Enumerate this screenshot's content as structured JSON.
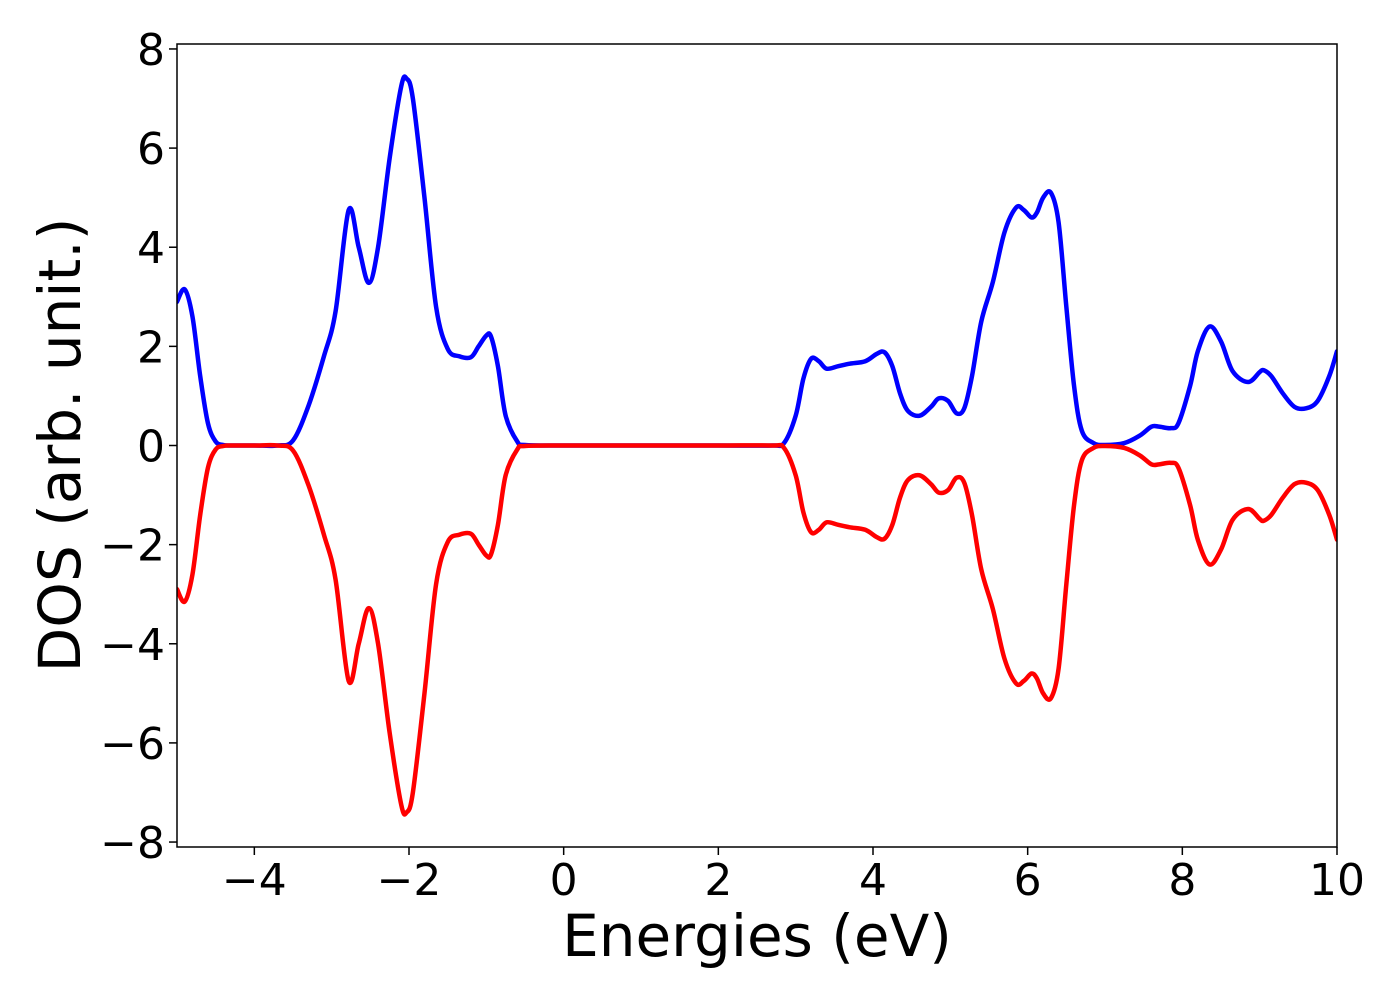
{
  "chart_data": {
    "type": "line",
    "xlabel": "Energies (eV)",
    "ylabel": "DOS (arb. unit.)",
    "xlim": [
      -5,
      10
    ],
    "ylim": [
      -8.1,
      8.1
    ],
    "xticks": [
      -4,
      -2,
      0,
      2,
      4,
      6,
      8,
      10
    ],
    "yticks": [
      -8,
      -6,
      -4,
      -2,
      0,
      2,
      4,
      6,
      8
    ],
    "xtick_labels": [
      "−4",
      "−2",
      "0",
      "2",
      "4",
      "6",
      "8",
      "10"
    ],
    "ytick_labels": [
      "−8",
      "−6",
      "−4",
      "−2",
      "0",
      "2",
      "4",
      "6",
      "8"
    ],
    "grid": false,
    "legend": "none",
    "series": [
      {
        "color": "#0000ff",
        "x": [
          -5.0,
          -4.9,
          -4.8,
          -4.7,
          -4.6,
          -4.5,
          -4.4,
          -4.3,
          -4.0,
          -3.7,
          -3.5,
          -3.3,
          -3.1,
          -2.95,
          -2.78,
          -2.65,
          -2.52,
          -2.4,
          -2.25,
          -2.1,
          -2.03,
          -1.95,
          -1.8,
          -1.65,
          -1.5,
          -1.35,
          -1.2,
          -1.1,
          -1.0,
          -0.94,
          -0.85,
          -0.75,
          -0.6,
          -0.5,
          0.0,
          1.0,
          2.0,
          2.7,
          2.85,
          3.0,
          3.1,
          3.2,
          3.3,
          3.4,
          3.55,
          3.7,
          3.9,
          4.05,
          4.15,
          4.25,
          4.35,
          4.45,
          4.6,
          4.75,
          4.85,
          4.97,
          5.08,
          5.18,
          5.28,
          5.4,
          5.55,
          5.7,
          5.85,
          5.95,
          6.05,
          6.12,
          6.2,
          6.3,
          6.4,
          6.5,
          6.6,
          6.7,
          6.85,
          7.0,
          7.25,
          7.45,
          7.6,
          7.7,
          7.85,
          7.95,
          8.1,
          8.2,
          8.35,
          8.5,
          8.65,
          8.85,
          9.0,
          9.05,
          9.15,
          9.3,
          9.45,
          9.6,
          9.75,
          9.9,
          10.0
        ],
        "y": [
          2.9,
          3.15,
          2.6,
          1.4,
          0.45,
          0.08,
          0.01,
          0.0,
          0.0,
          0.0,
          0.1,
          0.8,
          1.8,
          2.7,
          4.75,
          4.0,
          3.28,
          4.0,
          5.8,
          7.25,
          7.4,
          7.0,
          5.0,
          2.8,
          1.95,
          1.8,
          1.78,
          2.0,
          2.22,
          2.2,
          1.6,
          0.6,
          0.08,
          0.01,
          0.0,
          0.0,
          0.0,
          0.0,
          0.05,
          0.6,
          1.35,
          1.75,
          1.7,
          1.55,
          1.6,
          1.65,
          1.7,
          1.85,
          1.88,
          1.6,
          1.05,
          0.7,
          0.6,
          0.78,
          0.95,
          0.9,
          0.65,
          0.75,
          1.4,
          2.5,
          3.3,
          4.3,
          4.8,
          4.75,
          4.6,
          4.7,
          5.0,
          5.1,
          4.5,
          2.8,
          1.2,
          0.3,
          0.05,
          0.01,
          0.05,
          0.2,
          0.38,
          0.38,
          0.35,
          0.45,
          1.2,
          1.9,
          2.4,
          2.1,
          1.5,
          1.28,
          1.48,
          1.52,
          1.4,
          1.05,
          0.78,
          0.75,
          0.9,
          1.4,
          1.9
        ]
      },
      {
        "color": "#ff0000",
        "x": [
          -5.0,
          -4.9,
          -4.8,
          -4.7,
          -4.6,
          -4.5,
          -4.4,
          -4.3,
          -4.0,
          -3.7,
          -3.5,
          -3.3,
          -3.1,
          -2.95,
          -2.78,
          -2.65,
          -2.52,
          -2.4,
          -2.25,
          -2.1,
          -2.03,
          -1.95,
          -1.8,
          -1.65,
          -1.5,
          -1.35,
          -1.2,
          -1.1,
          -1.0,
          -0.94,
          -0.85,
          -0.75,
          -0.6,
          -0.5,
          0.0,
          1.0,
          2.0,
          2.7,
          2.85,
          3.0,
          3.1,
          3.2,
          3.3,
          3.4,
          3.55,
          3.7,
          3.9,
          4.05,
          4.15,
          4.25,
          4.35,
          4.45,
          4.6,
          4.75,
          4.85,
          4.97,
          5.08,
          5.18,
          5.28,
          5.4,
          5.55,
          5.7,
          5.85,
          5.95,
          6.05,
          6.12,
          6.2,
          6.3,
          6.4,
          6.5,
          6.6,
          6.7,
          6.85,
          7.0,
          7.25,
          7.45,
          7.6,
          7.7,
          7.85,
          7.95,
          8.1,
          8.2,
          8.35,
          8.5,
          8.65,
          8.85,
          9.0,
          9.05,
          9.15,
          9.3,
          9.45,
          9.6,
          9.75,
          9.9,
          10.0
        ],
        "y": [
          -2.9,
          -3.15,
          -2.6,
          -1.4,
          -0.45,
          -0.08,
          -0.01,
          0.0,
          0.0,
          0.0,
          -0.1,
          -0.8,
          -1.8,
          -2.7,
          -4.75,
          -4.0,
          -3.28,
          -4.0,
          -5.8,
          -7.25,
          -7.4,
          -7.0,
          -5.0,
          -2.8,
          -1.95,
          -1.8,
          -1.78,
          -2.0,
          -2.22,
          -2.2,
          -1.6,
          -0.6,
          -0.08,
          -0.01,
          0.0,
          0.0,
          0.0,
          0.0,
          -0.05,
          -0.6,
          -1.35,
          -1.75,
          -1.7,
          -1.55,
          -1.6,
          -1.65,
          -1.7,
          -1.85,
          -1.88,
          -1.6,
          -1.05,
          -0.7,
          -0.6,
          -0.78,
          -0.95,
          -0.9,
          -0.65,
          -0.75,
          -1.4,
          -2.5,
          -3.3,
          -4.3,
          -4.8,
          -4.75,
          -4.6,
          -4.7,
          -5.0,
          -5.1,
          -4.5,
          -2.8,
          -1.2,
          -0.3,
          -0.05,
          -0.01,
          -0.05,
          -0.2,
          -0.38,
          -0.38,
          -0.35,
          -0.45,
          -1.2,
          -1.9,
          -2.4,
          -2.1,
          -1.5,
          -1.28,
          -1.48,
          -1.52,
          -1.4,
          -1.05,
          -0.78,
          -0.75,
          -0.9,
          -1.4,
          -1.9
        ]
      }
    ]
  }
}
